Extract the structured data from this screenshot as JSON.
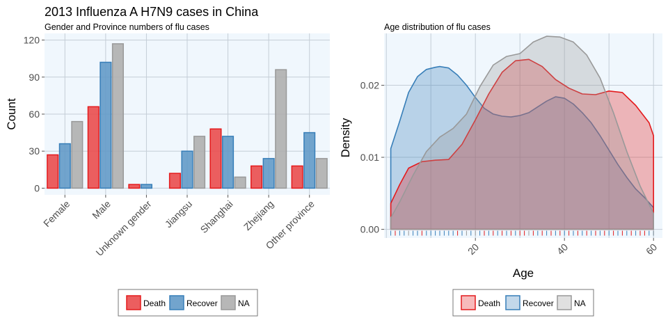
{
  "title": "2013 Influenza A H7N9 cases in China",
  "chart_data": [
    {
      "type": "bar",
      "subtitle": "Gender and Province numbers of flu cases",
      "xlabel": "",
      "ylabel": "Count",
      "ylim": [
        0,
        120
      ],
      "yticks": [
        0,
        30,
        60,
        90,
        120
      ],
      "grid": true,
      "legend_position": "bottom",
      "categories": [
        "Female",
        "Male",
        "Unknown gender",
        "Jiangsu",
        "Shanghai",
        "Zhejiang",
        "Other province"
      ],
      "series": [
        {
          "name": "Death",
          "color": "#E41A1C",
          "values": [
            27,
            66,
            3,
            12,
            48,
            18,
            18
          ]
        },
        {
          "name": "Recover",
          "color": "#377EB8",
          "values": [
            36,
            102,
            3,
            30,
            42,
            24,
            45
          ]
        },
        {
          "name": "NA",
          "color": "#999999",
          "values": [
            54,
            117,
            null,
            42,
            9,
            96,
            24
          ]
        }
      ]
    },
    {
      "type": "area",
      "subtitle": "Age distribution of flu cases",
      "xlabel": "Age",
      "ylabel": "Density",
      "xlim": [
        -0.5,
        62
      ],
      "ylim": [
        -0.0012,
        0.0272
      ],
      "xticks": [
        20,
        40,
        60
      ],
      "yticks": [
        0.0,
        0.01,
        0.02
      ],
      "ytick_labels": [
        "0.00",
        "0.01",
        "0.02"
      ],
      "grid": true,
      "legend_position": "bottom",
      "series": [
        {
          "name": "Death",
          "color": "#E41A1C",
          "x": [
            1,
            3,
            5,
            8,
            11,
            14,
            17,
            20,
            23,
            26,
            29,
            32,
            35,
            38,
            41,
            44,
            47,
            50,
            53,
            56,
            59,
            60
          ],
          "y": [
            0.0036,
            0.0062,
            0.0085,
            0.0094,
            0.0096,
            0.0097,
            0.0118,
            0.0152,
            0.0188,
            0.0218,
            0.0234,
            0.0236,
            0.0226,
            0.0208,
            0.0196,
            0.0188,
            0.0187,
            0.0192,
            0.019,
            0.0172,
            0.0148,
            0.013
          ]
        },
        {
          "name": "Recover",
          "color": "#377EB8",
          "x": [
            1,
            3,
            5,
            7,
            9,
            11,
            12,
            14,
            16,
            18,
            20,
            22,
            24,
            26,
            28,
            30,
            32,
            34,
            36,
            38,
            40,
            42,
            44,
            46,
            48,
            50,
            52,
            54,
            56,
            58,
            60
          ],
          "y": [
            0.0112,
            0.015,
            0.019,
            0.0212,
            0.0222,
            0.0225,
            0.0226,
            0.0224,
            0.0214,
            0.02,
            0.0183,
            0.0168,
            0.016,
            0.0157,
            0.0156,
            0.0158,
            0.0162,
            0.017,
            0.0178,
            0.0184,
            0.0182,
            0.0174,
            0.0162,
            0.0148,
            0.013,
            0.011,
            0.009,
            0.0072,
            0.0056,
            0.0044,
            0.003
          ]
        },
        {
          "name": "NA",
          "color": "#999999",
          "x": [
            1,
            3,
            6,
            9,
            12,
            15,
            18,
            21,
            24,
            27,
            30,
            33,
            36,
            39,
            42,
            45,
            48,
            51,
            54,
            57,
            60
          ],
          "y": [
            0.0016,
            0.0038,
            0.0075,
            0.0108,
            0.0128,
            0.014,
            0.016,
            0.0198,
            0.0228,
            0.024,
            0.0244,
            0.026,
            0.0268,
            0.0267,
            0.026,
            0.0242,
            0.021,
            0.0162,
            0.0108,
            0.006,
            0.0022
          ]
        }
      ],
      "rug": {
        "Death": [
          2,
          8,
          12,
          16,
          22,
          24,
          26,
          28,
          30,
          31,
          33,
          35,
          37,
          39,
          41,
          43,
          45,
          47,
          49,
          51,
          53,
          55,
          57,
          58
        ],
        "Recover": [
          1,
          3,
          4,
          6,
          7,
          9,
          10,
          11,
          12,
          13,
          14,
          15,
          17,
          19,
          21,
          23,
          25,
          27,
          29,
          34,
          36,
          38,
          40,
          42,
          44,
          46,
          48,
          50,
          52,
          54,
          56,
          59,
          60
        ],
        "NA": [
          5,
          18,
          20,
          32,
          60
        ]
      }
    }
  ]
}
